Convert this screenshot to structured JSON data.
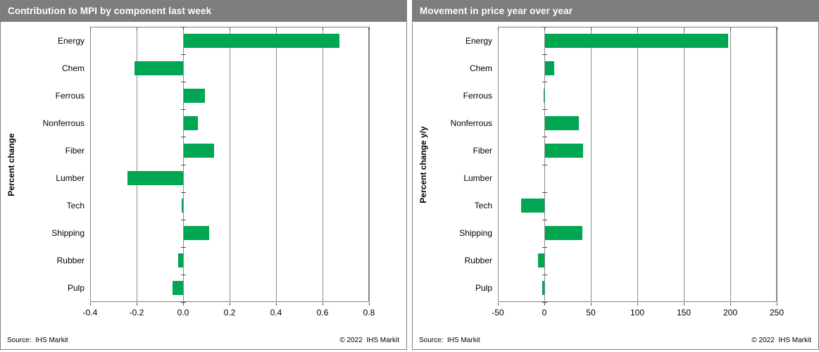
{
  "panels": [
    {
      "source": "Source:  IHS Markit",
      "copyright": "© 2022  IHS Markit"
    },
    {
      "source": "Source:  IHS Markit",
      "copyright": "© 2022  IHS Markit"
    }
  ],
  "chart_data": [
    {
      "type": "bar",
      "orientation": "horizontal",
      "title": "Contribution to MPI by component last week",
      "xlabel": "",
      "ylabel": "Percent change",
      "categories": [
        "Energy",
        "Chem",
        "Ferrous",
        "Nonferrous",
        "Fiber",
        "Lumber",
        "Tech",
        "Shipping",
        "Rubber",
        "Pulp"
      ],
      "values": [
        0.67,
        -0.21,
        0.09,
        0.06,
        0.13,
        -0.24,
        -0.005,
        0.11,
        -0.02,
        -0.045
      ],
      "xlim": [
        -0.4,
        0.8
      ],
      "xticks": [
        "-0.4",
        "-0.2",
        "0.0",
        "0.2",
        "0.4",
        "0.6",
        "0.8"
      ],
      "grid": true,
      "legend": false,
      "bar_color": "#00A651"
    },
    {
      "type": "bar",
      "orientation": "horizontal",
      "title": "Movement in price year over year",
      "xlabel": "",
      "ylabel": "Percent change y/y",
      "categories": [
        "Energy",
        "Chem",
        "Ferrous",
        "Nonferrous",
        "Fiber",
        "Lumber",
        "Tech",
        "Shipping",
        "Rubber",
        "Pulp"
      ],
      "values": [
        197,
        10,
        -1,
        36,
        41,
        0,
        -25,
        40,
        -7,
        -2
      ],
      "xlim": [
        -50,
        250
      ],
      "xticks": [
        "-50",
        "0",
        "50",
        "100",
        "150",
        "200",
        "250"
      ],
      "grid": true,
      "legend": false,
      "bar_color": "#00A651"
    }
  ]
}
